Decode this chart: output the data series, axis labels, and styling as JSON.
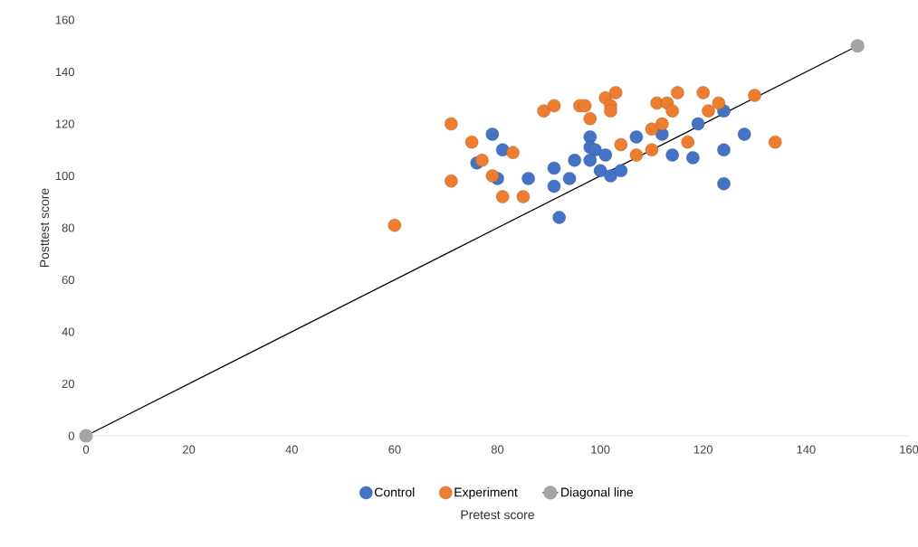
{
  "chart_data": {
    "type": "scatter",
    "xlabel": "Pretest score",
    "ylabel": "Posttest score",
    "xlim": [
      0,
      160
    ],
    "ylim": [
      0,
      160
    ],
    "xticks": [
      0,
      20,
      40,
      60,
      80,
      100,
      120,
      140,
      160
    ],
    "yticks": [
      0,
      20,
      40,
      60,
      80,
      100,
      120,
      140,
      160
    ],
    "grid": false,
    "legend": "bottom",
    "marker": "circle",
    "series": [
      {
        "name": "Control",
        "color": "#4472c4",
        "x": [
          79,
          76,
          81,
          80,
          81,
          86,
          91,
          91,
          92,
          94,
          95,
          98,
          98,
          99,
          98,
          100,
          101,
          102,
          104,
          107,
          108,
          110,
          112,
          114,
          118,
          119,
          124,
          124,
          124,
          128
        ],
        "values": [
          116,
          105,
          110,
          99,
          null,
          99,
          103,
          96,
          84,
          99,
          106,
          115,
          111,
          110,
          106,
          102,
          108,
          100,
          102,
          115,
          null,
          null,
          116,
          108,
          107,
          120,
          125,
          110,
          97,
          116
        ]
      },
      {
        "name": "Experiment",
        "color": "#ed7d31",
        "x": [
          60,
          71,
          71,
          75,
          77,
          79,
          81,
          83,
          85,
          89,
          91,
          96,
          97,
          98,
          101,
          102,
          102,
          103,
          104,
          107,
          110,
          110,
          111,
          112,
          113,
          114,
          115,
          117,
          120,
          121,
          123,
          130,
          134
        ],
        "values": [
          81,
          120,
          98,
          113,
          106,
          100,
          92,
          109,
          92,
          125,
          127,
          127,
          127,
          122,
          130,
          127,
          125,
          132,
          112,
          108,
          118,
          110,
          128,
          120,
          128,
          125,
          132,
          113,
          132,
          125,
          128,
          131,
          113
        ]
      },
      {
        "name": "Diagonal line",
        "type": "line",
        "color": "#a5a5a5",
        "x": [
          0,
          150
        ],
        "values": [
          0,
          150
        ]
      }
    ]
  }
}
